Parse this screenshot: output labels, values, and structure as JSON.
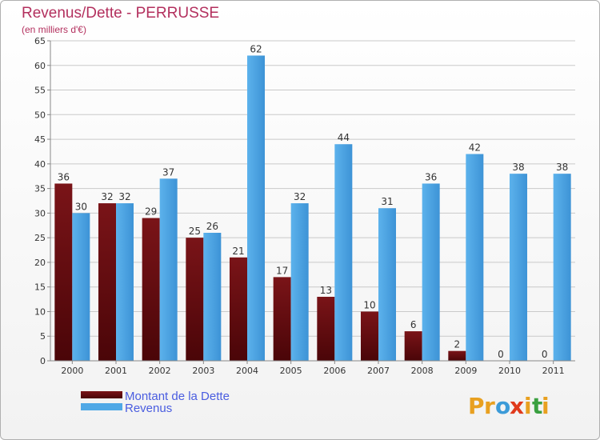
{
  "colors": {
    "title": "#b3305e",
    "dette_top": "#7a1418",
    "dette_bottom": "#4a0508",
    "revenus": "#4fa8e6",
    "revenus_shade": "#2f86c8",
    "grid": "#c9c9c9",
    "legend_text": "#4a5de0"
  },
  "chart_data": {
    "type": "bar",
    "title": "Revenus/Dette - PERRUSSE",
    "subtitle": "(en milliers d'€)",
    "xlabel": "",
    "ylabel": "",
    "ylim": [
      0,
      65
    ],
    "ytick_step": 5,
    "grid": true,
    "categories": [
      "2000",
      "2001",
      "2002",
      "2003",
      "2004",
      "2005",
      "2006",
      "2007",
      "2008",
      "2009",
      "2010",
      "2011"
    ],
    "series": [
      {
        "name": "Montant de la Dette",
        "key": "dette",
        "values": [
          36,
          32,
          29,
          25,
          21,
          17,
          13,
          10,
          6,
          2,
          0,
          0
        ]
      },
      {
        "name": "Revenus",
        "key": "revenus",
        "values": [
          30,
          32,
          37,
          26,
          62,
          32,
          44,
          31,
          36,
          42,
          38,
          38
        ]
      }
    ],
    "legend_position": "bottom-left"
  },
  "legend": {
    "dette_label": "Montant de la Dette",
    "revenus_label": "Revenus"
  },
  "brand": {
    "letters": [
      "P",
      "r",
      "o",
      "x",
      "i",
      "t",
      "i"
    ],
    "letter_colors": [
      "#e8a020",
      "#e8a020",
      "#3c9bd8",
      "#e03a1c",
      "#e8a020",
      "#3aa040",
      "#e8a020"
    ]
  }
}
